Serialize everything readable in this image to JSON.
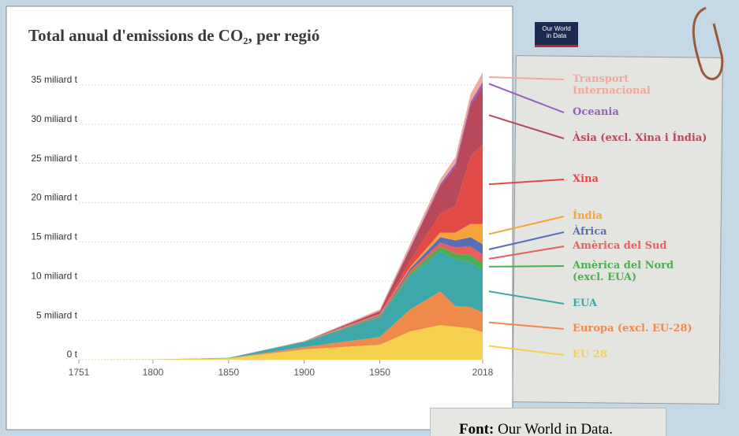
{
  "chart_data": {
    "type": "stacked-area",
    "title": "Total anual d'emissions de CO₂, per regió",
    "logo": "Our World in Data",
    "x": [
      1751,
      1800,
      1850,
      1900,
      1950,
      1970,
      1990,
      2000,
      2010,
      2018
    ],
    "xlim": [
      1751,
      2018
    ],
    "xticks": [
      1751,
      1800,
      1850,
      1900,
      1950,
      2018
    ],
    "ylim": [
      0,
      37
    ],
    "yticks": [
      {
        "value": 0,
        "label": "0 t"
      },
      {
        "value": 5,
        "label": "5 miliard t"
      },
      {
        "value": 10,
        "label": "10 miliard t"
      },
      {
        "value": 15,
        "label": "15 miliard t"
      },
      {
        "value": 20,
        "label": "20 miliard t"
      },
      {
        "value": 25,
        "label": "25 miliard t"
      },
      {
        "value": 30,
        "label": "30 miliard t"
      },
      {
        "value": 35,
        "label": "35 miliard t"
      }
    ],
    "grid": true,
    "series": [
      {
        "name": "EU 28",
        "color": "#f6cf4f",
        "values": [
          0.01,
          0.03,
          0.18,
          1.3,
          1.9,
          3.6,
          4.4,
          4.2,
          4.0,
          3.5
        ]
      },
      {
        "name": "Europa (excl. EU-28)",
        "color": "#f08a4b",
        "values": [
          0,
          0,
          0.01,
          0.3,
          1.0,
          2.8,
          4.3,
          2.6,
          2.7,
          2.5
        ]
      },
      {
        "name": "EUA",
        "color": "#3ea7a9",
        "values": [
          0,
          0.003,
          0.05,
          0.66,
          2.5,
          4.3,
          5.1,
          6.0,
          5.7,
          5.4
        ]
      },
      {
        "name": "Amèrica del Nord (excl. EUA)",
        "color": "#4caf50",
        "values": [
          0,
          0,
          0,
          0.03,
          0.1,
          0.3,
          0.6,
          0.7,
          0.9,
          0.9
        ]
      },
      {
        "name": "Amèrica del Sud",
        "color": "#e8605a",
        "values": [
          0,
          0,
          0,
          0.01,
          0.1,
          0.3,
          0.5,
          0.8,
          1.1,
          1.1
        ]
      },
      {
        "name": "Àfrica",
        "color": "#5a6db8",
        "values": [
          0,
          0,
          0,
          0.01,
          0.1,
          0.3,
          0.7,
          0.9,
          1.2,
          1.3
        ]
      },
      {
        "name": "Índia",
        "color": "#f5a33c",
        "values": [
          0,
          0,
          0,
          0.02,
          0.08,
          0.2,
          0.6,
          1.0,
          1.7,
          2.6
        ]
      },
      {
        "name": "Xina",
        "color": "#e24a45",
        "values": [
          0,
          0,
          0,
          0,
          0.08,
          0.8,
          2.4,
          3.4,
          8.6,
          10.1
        ]
      },
      {
        "name": "Àsia (excl. Xina i Índia)",
        "color": "#b8485a",
        "values": [
          0,
          0,
          0,
          0.02,
          0.3,
          1.5,
          3.5,
          5.0,
          6.5,
          7.5
        ]
      },
      {
        "name": "Oceania",
        "color": "#9360bb",
        "values": [
          0,
          0,
          0,
          0.01,
          0.05,
          0.15,
          0.3,
          0.4,
          0.45,
          0.5
        ]
      },
      {
        "name": "Transport Internacional",
        "color": "#f2a99b",
        "values": [
          0,
          0,
          0,
          0,
          0.2,
          0.5,
          0.6,
          0.8,
          1.0,
          1.2
        ]
      }
    ]
  },
  "source": {
    "label": "Font:",
    "text": "Our World in Data."
  }
}
